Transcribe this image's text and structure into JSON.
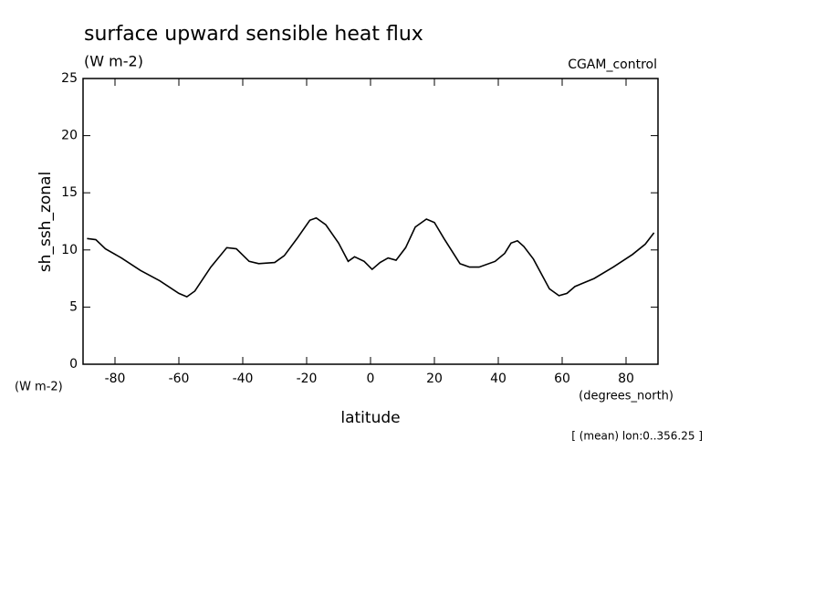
{
  "chart_data": {
    "type": "line",
    "title": "surface upward sensible heat flux",
    "subtitle": "(W m-2)",
    "experiment": "CGAM_control",
    "ylabel": "sh_ssh_zonal",
    "yunits": "(W m-2)",
    "xlabel": "latitude",
    "xunits": "(degrees_north)",
    "annotation": "[ (mean) lon:0..356.25 ]",
    "x": [
      -88.75,
      -86,
      -83,
      -78,
      -72,
      -66,
      -60,
      -57.5,
      -55,
      -50,
      -45,
      -42,
      -38,
      -35,
      -30,
      -27,
      -23,
      -19,
      -17,
      -14,
      -10,
      -7,
      -5,
      -2,
      0.5,
      3,
      5.5,
      8,
      11,
      14,
      17.5,
      20,
      23,
      28,
      31,
      34,
      39,
      42,
      44,
      46,
      48,
      51,
      56,
      59,
      61.5,
      64,
      70,
      76,
      82,
      86,
      88.75
    ],
    "series": [
      {
        "color": "#000000",
        "values": [
          11.0,
          10.9,
          10.1,
          9.3,
          8.2,
          7.3,
          6.2,
          5.9,
          6.4,
          8.5,
          10.2,
          10.1,
          9.0,
          8.8,
          8.9,
          9.5,
          11.0,
          12.6,
          12.8,
          12.2,
          10.6,
          9.0,
          9.4,
          9.0,
          8.3,
          8.9,
          9.3,
          9.1,
          10.2,
          12.0,
          12.7,
          12.4,
          11.0,
          8.8,
          8.5,
          8.5,
          9.0,
          9.7,
          10.6,
          10.8,
          10.3,
          9.2,
          6.6,
          6.0,
          6.2,
          6.8,
          7.5,
          8.5,
          9.6,
          10.5,
          11.5
        ]
      }
    ],
    "xlim": [
      -90,
      90
    ],
    "xticks": [
      -80,
      -60,
      -40,
      -20,
      0,
      20,
      40,
      60,
      80
    ],
    "ylim": [
      0,
      25
    ],
    "yticks": [
      0,
      5,
      10,
      15,
      20,
      25
    ]
  }
}
